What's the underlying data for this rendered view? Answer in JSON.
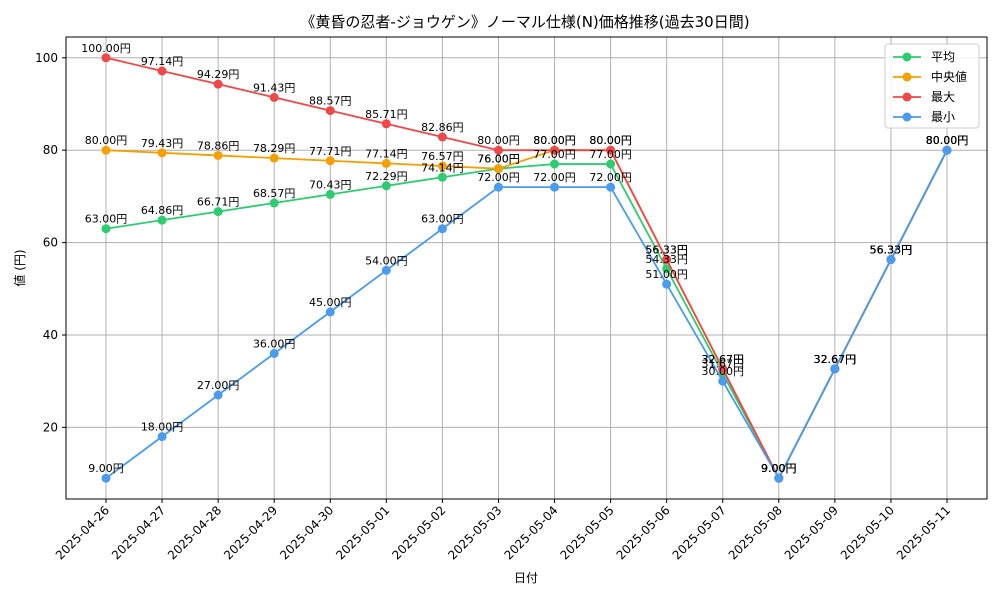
{
  "chart_data": {
    "type": "line",
    "title": "《黄昏の忍者-ジョウゲン》ノーマル仕様(N)価格推移(過去30日間)",
    "xlabel": "日付",
    "ylabel": "値 (円)",
    "label_suffix": "円",
    "ylim": [
      4.5,
      104.5
    ],
    "yticks": [
      20,
      40,
      60,
      80,
      100
    ],
    "grid": true,
    "legend_position": "top-right",
    "categories": [
      "2025-04-26",
      "2025-04-27",
      "2025-04-28",
      "2025-04-29",
      "2025-04-30",
      "2025-05-01",
      "2025-05-02",
      "2025-05-03",
      "2025-05-04",
      "2025-05-05",
      "2025-05-06",
      "2025-05-07",
      "2025-05-08",
      "2025-05-09",
      "2025-05-10",
      "2025-05-11"
    ],
    "series": [
      {
        "name": "平均",
        "color": "#2ecc71",
        "values": [
          63.0,
          64.86,
          66.71,
          68.57,
          70.43,
          72.29,
          74.14,
          76.0,
          77.0,
          77.0,
          54.33,
          31.67,
          9.0,
          32.67,
          56.33,
          80.0
        ]
      },
      {
        "name": "中央値",
        "color": "#f5a000",
        "values": [
          80.0,
          79.43,
          78.86,
          78.29,
          77.71,
          77.14,
          76.57,
          76.0,
          80.0,
          80.0,
          56.33,
          32.67,
          9.0,
          32.67,
          56.33,
          80.0
        ]
      },
      {
        "name": "最大",
        "color": "#f04848",
        "values": [
          100.0,
          97.14,
          94.29,
          91.43,
          88.57,
          85.71,
          82.86,
          80.0,
          80.0,
          80.0,
          56.33,
          32.67,
          9.0,
          32.67,
          56.33,
          80.0
        ]
      },
      {
        "name": "最小",
        "color": "#4a9af0",
        "values": [
          9.0,
          18.0,
          27.0,
          36.0,
          45.0,
          54.0,
          63.0,
          72.0,
          72.0,
          72.0,
          51.0,
          30.0,
          9.0,
          32.67,
          56.33,
          80.0
        ]
      }
    ]
  }
}
